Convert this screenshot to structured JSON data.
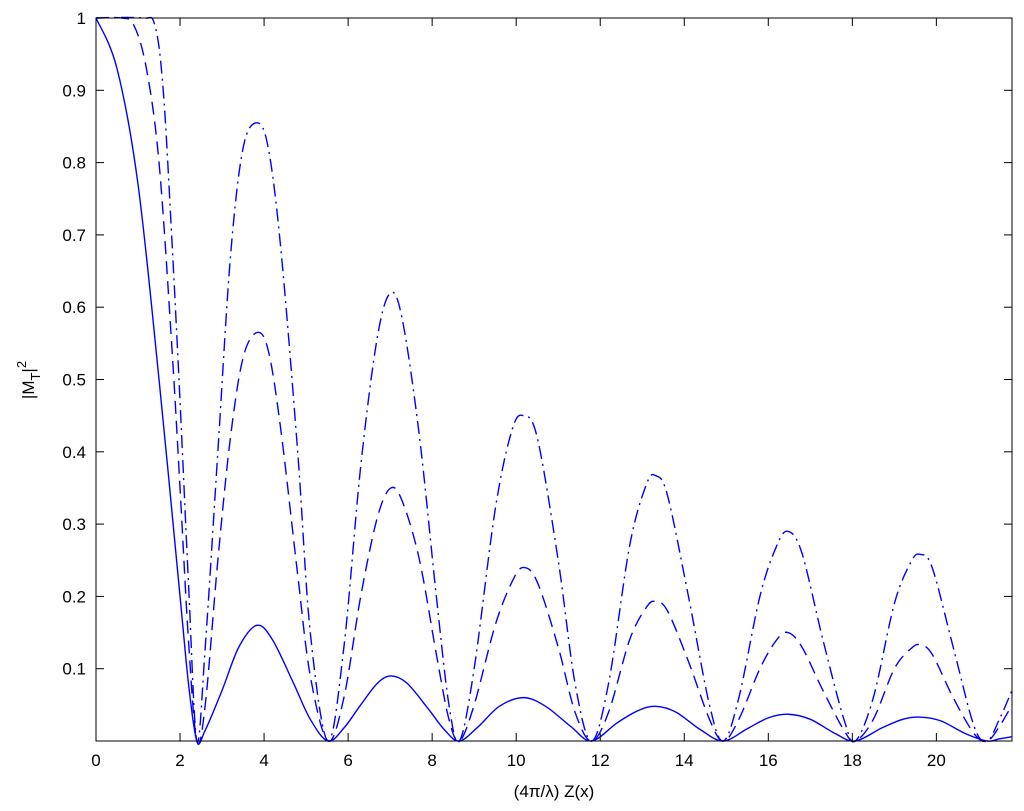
{
  "chart_data": {
    "type": "line",
    "title": "",
    "xlabel": "(4π/λ) Z(x)",
    "ylabel": {
      "main": "|M",
      "subscript": "T",
      "suffix": "|",
      "superscript": "2"
    },
    "xlim": [
      0,
      21.8
    ],
    "ylim": [
      0,
      1
    ],
    "x_ticks": [
      0,
      2,
      4,
      6,
      8,
      10,
      12,
      14,
      16,
      18,
      20
    ],
    "x_tick_labels": [
      "0",
      "2",
      "4",
      "6",
      "8",
      "10",
      "12",
      "14",
      "16",
      "18",
      "20"
    ],
    "y_ticks": [
      0.1,
      0.2,
      0.3,
      0.4,
      0.5,
      0.6,
      0.7,
      0.8,
      0.9,
      1
    ],
    "y_tick_labels": [
      "0.1",
      "0.2",
      "0.3",
      "0.4",
      "0.5",
      "0.6",
      "0.7",
      "0.8",
      "0.9",
      "1"
    ],
    "grid": false,
    "legend": "none",
    "line_color": "#0000ff",
    "series": [
      {
        "style": "solid",
        "points": [
          [
            0,
            1
          ],
          [
            0.5,
            0.93
          ],
          [
            1,
            0.77
          ],
          [
            1.5,
            0.5
          ],
          [
            2,
            0.2
          ],
          [
            2.2,
            0.08
          ],
          [
            2.4,
            0
          ],
          [
            2.6,
            0.015
          ],
          [
            3,
            0.07
          ],
          [
            3.4,
            0.13
          ],
          [
            3.83,
            0.16
          ],
          [
            4.2,
            0.14
          ],
          [
            4.7,
            0.08
          ],
          [
            5.1,
            0.03
          ],
          [
            5.52,
            0
          ],
          [
            5.9,
            0.018
          ],
          [
            6.3,
            0.05
          ],
          [
            6.7,
            0.08
          ],
          [
            7.02,
            0.09
          ],
          [
            7.4,
            0.08
          ],
          [
            7.9,
            0.045
          ],
          [
            8.3,
            0.015
          ],
          [
            8.65,
            0
          ],
          [
            9.1,
            0.02
          ],
          [
            9.6,
            0.048
          ],
          [
            10.17,
            0.06
          ],
          [
            10.7,
            0.048
          ],
          [
            11.3,
            0.02
          ],
          [
            11.79,
            0
          ],
          [
            12.4,
            0.025
          ],
          [
            12.9,
            0.042
          ],
          [
            13.32,
            0.048
          ],
          [
            13.8,
            0.04
          ],
          [
            14.4,
            0.015
          ],
          [
            14.93,
            0
          ],
          [
            15.5,
            0.017
          ],
          [
            16,
            0.032
          ],
          [
            16.47,
            0.037
          ],
          [
            17,
            0.03
          ],
          [
            17.6,
            0.01
          ],
          [
            18.07,
            0
          ],
          [
            18.7,
            0.018
          ],
          [
            19.2,
            0.03
          ],
          [
            19.62,
            0.033
          ],
          [
            20.1,
            0.028
          ],
          [
            20.7,
            0.01
          ],
          [
            21.21,
            0
          ],
          [
            21.5,
            0.003
          ],
          [
            21.8,
            0.006
          ]
        ]
      },
      {
        "style": "dashed",
        "points": [
          [
            0,
            1
          ],
          [
            0.6,
            1
          ],
          [
            0.9,
            0.99
          ],
          [
            1.2,
            0.93
          ],
          [
            1.5,
            0.8
          ],
          [
            1.8,
            0.55
          ],
          [
            2.0,
            0.35
          ],
          [
            2.2,
            0.14
          ],
          [
            2.4,
            0
          ],
          [
            2.6,
            0.05
          ],
          [
            2.9,
            0.25
          ],
          [
            3.2,
            0.42
          ],
          [
            3.5,
            0.53
          ],
          [
            3.83,
            0.565
          ],
          [
            4.1,
            0.54
          ],
          [
            4.4,
            0.43
          ],
          [
            4.8,
            0.23
          ],
          [
            5.1,
            0.09
          ],
          [
            5.52,
            0
          ],
          [
            5.9,
            0.06
          ],
          [
            6.3,
            0.2
          ],
          [
            6.7,
            0.31
          ],
          [
            7.02,
            0.35
          ],
          [
            7.3,
            0.33
          ],
          [
            7.7,
            0.25
          ],
          [
            8.1,
            0.12
          ],
          [
            8.4,
            0.03
          ],
          [
            8.65,
            0
          ],
          [
            9.0,
            0.05
          ],
          [
            9.5,
            0.16
          ],
          [
            9.9,
            0.22
          ],
          [
            10.17,
            0.24
          ],
          [
            10.5,
            0.22
          ],
          [
            11.0,
            0.13
          ],
          [
            11.4,
            0.04
          ],
          [
            11.79,
            0
          ],
          [
            12.2,
            0.04
          ],
          [
            12.7,
            0.14
          ],
          [
            13.1,
            0.185
          ],
          [
            13.32,
            0.193
          ],
          [
            13.6,
            0.18
          ],
          [
            14.1,
            0.11
          ],
          [
            14.6,
            0.03
          ],
          [
            14.93,
            0
          ],
          [
            15.3,
            0.03
          ],
          [
            15.8,
            0.1
          ],
          [
            16.2,
            0.14
          ],
          [
            16.47,
            0.15
          ],
          [
            16.8,
            0.13
          ],
          [
            17.3,
            0.07
          ],
          [
            17.8,
            0.015
          ],
          [
            18.07,
            0
          ],
          [
            18.5,
            0.03
          ],
          [
            19.0,
            0.1
          ],
          [
            19.4,
            0.128
          ],
          [
            19.62,
            0.133
          ],
          [
            19.9,
            0.12
          ],
          [
            20.4,
            0.06
          ],
          [
            20.9,
            0.01
          ],
          [
            21.21,
            0
          ],
          [
            21.5,
            0.02
          ],
          [
            21.8,
            0.05
          ]
        ]
      },
      {
        "style": "dash-dot",
        "points": [
          [
            0,
            1
          ],
          [
            1.1,
            1
          ],
          [
            1.4,
            0.99
          ],
          [
            1.6,
            0.9
          ],
          [
            1.8,
            0.7
          ],
          [
            2.0,
            0.47
          ],
          [
            2.2,
            0.22
          ],
          [
            2.4,
            0
          ],
          [
            2.6,
            0.13
          ],
          [
            2.9,
            0.4
          ],
          [
            3.2,
            0.67
          ],
          [
            3.5,
            0.82
          ],
          [
            3.83,
            0.855
          ],
          [
            4.1,
            0.82
          ],
          [
            4.4,
            0.68
          ],
          [
            4.8,
            0.4
          ],
          [
            5.1,
            0.15
          ],
          [
            5.52,
            0
          ],
          [
            5.9,
            0.13
          ],
          [
            6.3,
            0.38
          ],
          [
            6.7,
            0.56
          ],
          [
            7.02,
            0.62
          ],
          [
            7.3,
            0.58
          ],
          [
            7.7,
            0.42
          ],
          [
            8.1,
            0.2
          ],
          [
            8.4,
            0.05
          ],
          [
            8.65,
            0
          ],
          [
            9.0,
            0.1
          ],
          [
            9.5,
            0.32
          ],
          [
            9.9,
            0.43
          ],
          [
            10.17,
            0.45
          ],
          [
            10.5,
            0.42
          ],
          [
            11.0,
            0.25
          ],
          [
            11.4,
            0.08
          ],
          [
            11.79,
            0
          ],
          [
            12.2,
            0.08
          ],
          [
            12.7,
            0.27
          ],
          [
            13.1,
            0.355
          ],
          [
            13.32,
            0.367
          ],
          [
            13.6,
            0.34
          ],
          [
            14.1,
            0.2
          ],
          [
            14.6,
            0.05
          ],
          [
            14.93,
            0
          ],
          [
            15.3,
            0.06
          ],
          [
            15.8,
            0.2
          ],
          [
            16.2,
            0.27
          ],
          [
            16.47,
            0.29
          ],
          [
            16.8,
            0.26
          ],
          [
            17.3,
            0.14
          ],
          [
            17.8,
            0.03
          ],
          [
            18.07,
            0
          ],
          [
            18.5,
            0.06
          ],
          [
            19.0,
            0.19
          ],
          [
            19.4,
            0.248
          ],
          [
            19.62,
            0.258
          ],
          [
            19.9,
            0.24
          ],
          [
            20.4,
            0.13
          ],
          [
            20.9,
            0.02
          ],
          [
            21.21,
            0
          ],
          [
            21.5,
            0.03
          ],
          [
            21.8,
            0.07
          ]
        ]
      }
    ]
  }
}
